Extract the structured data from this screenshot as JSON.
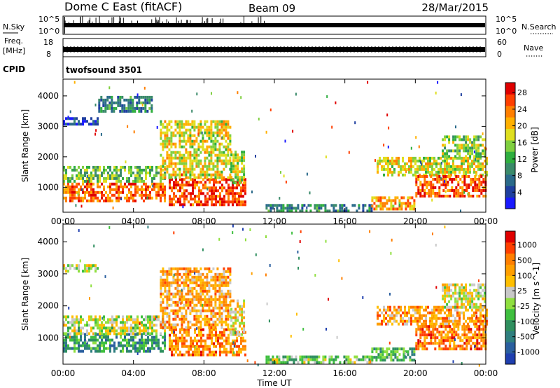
{
  "header": {
    "title": "Dome C East (fitACF)",
    "beam": "Beam 09",
    "date": "28/Mar/2015"
  },
  "noise_panel": {
    "left_label": "N.Sky",
    "left_ticks": [
      "10^5",
      "10^0"
    ],
    "right_label": "N.Search",
    "right_ticks": [
      "10^5",
      "10^0"
    ]
  },
  "freq_panel": {
    "left_label_1": "Freq.",
    "left_label_2": "[MHz]",
    "left_ticks": [
      "18",
      "8"
    ],
    "right_label": "Nave",
    "right_ticks": [
      "60",
      "0"
    ]
  },
  "cpid_panel": {
    "label": "CPID",
    "value": "twofsound 3501"
  },
  "chart_data": [
    {
      "type": "heatmap",
      "name": "power",
      "ylabel": "Slant Range [km]",
      "xlabel": "",
      "x_ticks": [
        "00:00",
        "04:00",
        "08:00",
        "12:00",
        "16:00",
        "20:00",
        "00:00"
      ],
      "x_range_hours": [
        0,
        24
      ],
      "y_ticks": [
        1000,
        2000,
        3000,
        4000
      ],
      "y_range_km": [
        180,
        4550
      ],
      "colorbar": {
        "label": "Power [dB]",
        "ticks": [
          "4",
          "8",
          "12",
          "16",
          "20",
          "24",
          "28"
        ],
        "colors": [
          "#1a1aff",
          "#1f3f9f",
          "#2a6a8a",
          "#3a8a6a",
          "#2fae3f",
          "#7fcf3f",
          "#dfdf1f",
          "#ffb000",
          "#ff7f00",
          "#ff3f00",
          "#e00000"
        ]
      },
      "echo_regions": [
        {
          "t0": 0.0,
          "t1": 5.8,
          "r0": 550,
          "r1": 1150,
          "level": 0.82
        },
        {
          "t0": 0.0,
          "t1": 5.8,
          "r0": 1150,
          "r1": 1700,
          "level": 0.45
        },
        {
          "t0": 0.0,
          "t1": 2.0,
          "r0": 3050,
          "r1": 3300,
          "level": 0.15
        },
        {
          "t0": 2.0,
          "t1": 5.0,
          "r0": 3500,
          "r1": 4000,
          "level": 0.3
        },
        {
          "t0": 6.0,
          "t1": 10.3,
          "r0": 450,
          "r1": 1300,
          "level": 0.88
        },
        {
          "t0": 5.5,
          "t1": 9.5,
          "r0": 1300,
          "r1": 3200,
          "level": 0.6
        },
        {
          "t0": 9.5,
          "t1": 10.3,
          "r0": 1100,
          "r1": 2200,
          "level": 0.55
        },
        {
          "t0": 11.5,
          "t1": 17.5,
          "r0": 250,
          "r1": 450,
          "level": 0.3
        },
        {
          "t0": 17.5,
          "t1": 20.0,
          "r0": 300,
          "r1": 700,
          "level": 0.7
        },
        {
          "t0": 17.8,
          "t1": 24.0,
          "r0": 1400,
          "r1": 2000,
          "level": 0.6
        },
        {
          "t0": 20.0,
          "t1": 24.0,
          "r0": 700,
          "r1": 1400,
          "level": 0.85
        },
        {
          "t0": 21.5,
          "t1": 24.0,
          "r0": 2000,
          "r1": 2700,
          "level": 0.5
        }
      ]
    },
    {
      "type": "heatmap",
      "name": "velocity",
      "ylabel": "Slant Range [km]",
      "xlabel": "Time UT",
      "x_ticks": [
        "00:00",
        "04:00",
        "08:00",
        "12:00",
        "16:00",
        "20:00",
        "00:00"
      ],
      "x_range_hours": [
        0,
        24
      ],
      "y_ticks": [
        1000,
        2000,
        3000,
        4000
      ],
      "y_range_km": [
        180,
        4550
      ],
      "colorbar": {
        "label": "Velocity [m s^-1]",
        "ticks": [
          "1000",
          "500",
          "100",
          "25",
          "-25",
          "-100",
          "-500",
          "-1000"
        ],
        "colors": [
          "#1f3faf",
          "#2a5f9f",
          "#2f7f7f",
          "#2f8f5f",
          "#3fbf3f",
          "#8fdf3f",
          "#c8c8c8",
          "#ffbf00",
          "#ff9f00",
          "#ff7f00",
          "#ff3f00",
          "#e00000"
        ]
      },
      "echo_regions": [
        {
          "t0": 0.0,
          "t1": 5.8,
          "r0": 550,
          "r1": 1150,
          "level": 0.28
        },
        {
          "t0": 0.0,
          "t1": 5.8,
          "r0": 1150,
          "r1": 1700,
          "level": 0.5
        },
        {
          "t0": 0.0,
          "t1": 2.0,
          "r0": 3050,
          "r1": 3300,
          "level": 0.5
        },
        {
          "t0": 6.0,
          "t1": 10.3,
          "r0": 450,
          "r1": 1300,
          "level": 0.76
        },
        {
          "t0": 5.5,
          "t1": 9.5,
          "r0": 1300,
          "r1": 3200,
          "level": 0.7
        },
        {
          "t0": 9.5,
          "t1": 10.3,
          "r0": 1100,
          "r1": 2200,
          "level": 0.6
        },
        {
          "t0": 11.5,
          "t1": 17.5,
          "r0": 250,
          "r1": 450,
          "level": 0.45
        },
        {
          "t0": 17.5,
          "t1": 20.0,
          "r0": 300,
          "r1": 700,
          "level": 0.35
        },
        {
          "t0": 17.8,
          "t1": 24.0,
          "r0": 1400,
          "r1": 2000,
          "level": 0.72
        },
        {
          "t0": 20.0,
          "t1": 24.0,
          "r0": 700,
          "r1": 1400,
          "level": 0.78
        },
        {
          "t0": 21.5,
          "t1": 24.0,
          "r0": 2000,
          "r1": 2700,
          "level": 0.55
        }
      ]
    }
  ]
}
